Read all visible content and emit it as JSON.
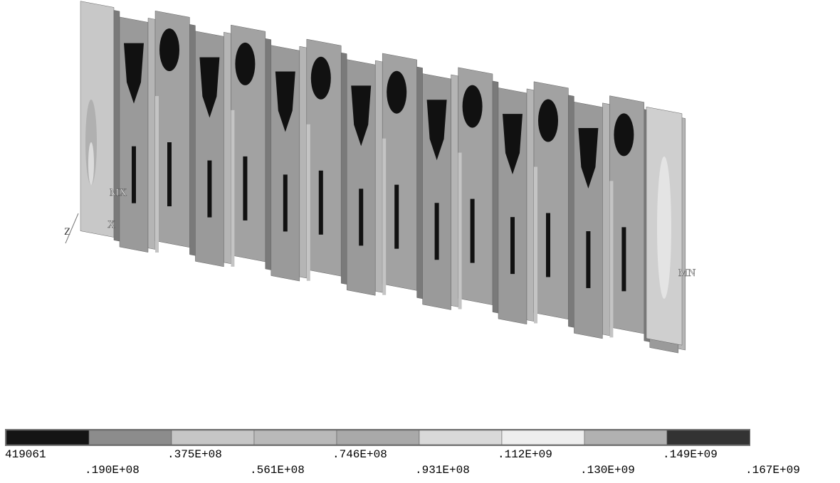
{
  "labels": {
    "mx": "MX",
    "x": "X",
    "mn": "MN",
    "z": "Z"
  },
  "legend": {
    "colors": [
      "#141414",
      "#8c8c8c",
      "#c6c6c6",
      "#b9b9b9",
      "#a9a9a9",
      "#d9d9d9",
      "#eeeeee",
      "#b1b1b1",
      "#333333"
    ],
    "labels": [
      "419061",
      ".190E+08",
      ".375E+08",
      ".561E+08",
      ".746E+08",
      ".931E+08",
      ".112E+09",
      ".130E+09",
      ".149E+09",
      ".167E+09"
    ]
  }
}
